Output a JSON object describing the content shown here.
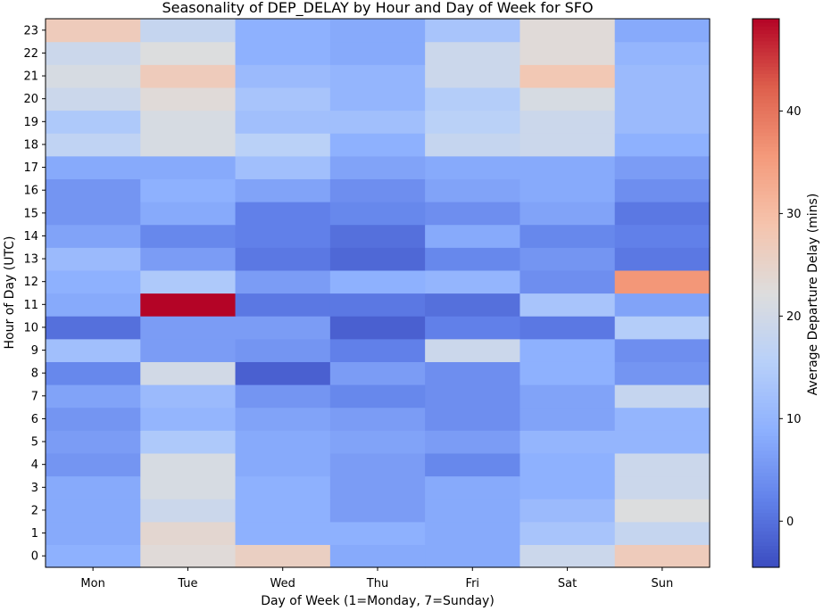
{
  "chart_data": {
    "type": "heatmap",
    "title": "Seasonality of DEP_DELAY by Hour and Day of Week for SFO",
    "xlabel": "Day of Week (1=Monday, 7=Sunday)",
    "ylabel": "Hour of Day (UTC)",
    "x_categories": [
      "Mon",
      "Tue",
      "Wed",
      "Thu",
      "Fri",
      "Sat",
      "Sun"
    ],
    "y_categories": [
      "0",
      "1",
      "2",
      "3",
      "4",
      "5",
      "6",
      "7",
      "8",
      "9",
      "10",
      "11",
      "12",
      "13",
      "14",
      "15",
      "16",
      "17",
      "18",
      "19",
      "20",
      "21",
      "22",
      "23"
    ],
    "colorbar": {
      "label": "Average Departure Delay (mins)",
      "colormap": "coolwarm",
      "vmin": -4.5,
      "vmax": 49,
      "ticks": [
        0,
        10,
        20,
        30,
        40
      ]
    },
    "values": [
      [
        9,
        23,
        26,
        8,
        8,
        19,
        27
      ],
      [
        8,
        24,
        9,
        9,
        8,
        13,
        18
      ],
      [
        8,
        19,
        9,
        6,
        8,
        11,
        22
      ],
      [
        8,
        21,
        9,
        6,
        8,
        9,
        19
      ],
      [
        5,
        21,
        8,
        6,
        3,
        9,
        19
      ],
      [
        6,
        14,
        8,
        7,
        6,
        10,
        10
      ],
      [
        5,
        10,
        7,
        6,
        4,
        7,
        10
      ],
      [
        7,
        11,
        5,
        3,
        4,
        7,
        18
      ],
      [
        3,
        20,
        -2,
        6,
        4,
        9,
        5
      ],
      [
        12,
        6,
        5,
        2,
        19,
        9,
        4
      ],
      [
        0,
        6,
        6,
        -2,
        2,
        1,
        15
      ],
      [
        8,
        49,
        1,
        1,
        0,
        13,
        7
      ],
      [
        9,
        14,
        6,
        9,
        10,
        4,
        36
      ],
      [
        11,
        6,
        1,
        -1,
        3,
        5,
        1
      ],
      [
        7,
        3,
        2,
        0,
        8,
        3,
        2
      ],
      [
        5,
        8,
        2,
        3,
        4,
        7,
        1
      ],
      [
        5,
        9,
        7,
        4,
        7,
        8,
        4
      ],
      [
        8,
        8,
        12,
        7,
        8,
        8,
        6
      ],
      [
        17,
        21,
        16,
        9,
        18,
        19,
        9
      ],
      [
        14,
        21,
        12,
        12,
        16,
        19,
        11
      ],
      [
        19,
        23,
        13,
        10,
        15,
        21,
        11
      ],
      [
        21,
        27,
        11,
        10,
        19,
        28,
        11
      ],
      [
        19,
        22,
        9,
        8,
        19,
        23,
        10
      ],
      [
        27,
        18,
        9,
        8,
        13,
        23,
        8
      ]
    ]
  }
}
